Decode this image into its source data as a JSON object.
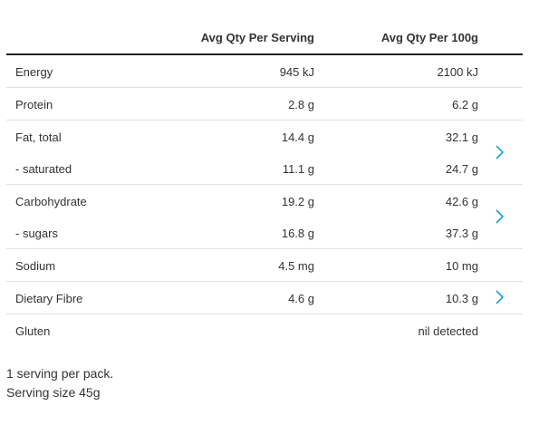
{
  "header": {
    "per_serving": "Avg Qty Per Serving",
    "per_100g": "Avg Qty Per 100g"
  },
  "rows": [
    {
      "label": "Energy",
      "serving": "945 kJ",
      "per100": "2100 kJ"
    },
    {
      "label": "Protein",
      "serving": "2.8 g",
      "per100": "6.2 g"
    },
    {
      "label": "Fat, total",
      "serving": "14.4 g",
      "per100": "32.1 g"
    },
    {
      "label": "- saturated",
      "serving": "11.1 g",
      "per100": "24.7 g"
    },
    {
      "label": "Carbohydrate",
      "serving": "19.2 g",
      "per100": "42.6 g"
    },
    {
      "label": "- sugars",
      "serving": "16.8 g",
      "per100": "37.3 g"
    },
    {
      "label": "Sodium",
      "serving": "4.5 mg",
      "per100": "10 mg"
    },
    {
      "label": "Dietary Fibre",
      "serving": "4.6 g",
      "per100": "10.3 g"
    },
    {
      "label": "Gluten",
      "serving": "",
      "per100": "nil detected"
    }
  ],
  "footer": {
    "line1": "1 serving per pack.",
    "line2": "Serving size 45g"
  },
  "colors": {
    "accent": "#1aa3d4",
    "divider": "#e1e1e1",
    "header_rule": "#222222"
  },
  "icons": {
    "expand": "chevron-right-icon"
  }
}
